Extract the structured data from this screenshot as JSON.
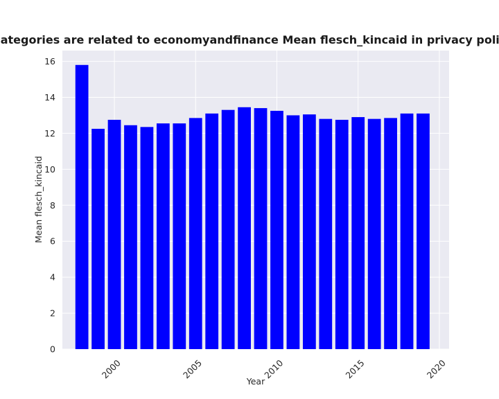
{
  "chart_data": {
    "type": "bar",
    "title": "when categories are related to economyandfinance Mean flesch_kincaid in privacy policies by Y",
    "xlabel": "Year",
    "ylabel": "Mean flesch_kincaid",
    "x": [
      1998,
      1999,
      2000,
      2001,
      2002,
      2003,
      2004,
      2005,
      2006,
      2007,
      2008,
      2009,
      2010,
      2011,
      2012,
      2013,
      2014,
      2015,
      2016,
      2017,
      2018,
      2019
    ],
    "values": [
      15.8,
      12.25,
      12.75,
      12.45,
      12.35,
      12.55,
      12.55,
      12.85,
      13.1,
      13.3,
      13.45,
      13.4,
      13.25,
      13.0,
      13.05,
      12.8,
      12.75,
      12.9,
      12.8,
      12.85,
      13.1,
      13.1
    ],
    "xlim": [
      1996.8,
      2020.6
    ],
    "ylim": [
      0,
      16.6
    ],
    "x_ticks": [
      2000,
      2005,
      2010,
      2015,
      2020
    ],
    "y_ticks": [
      0,
      2,
      4,
      6,
      8,
      10,
      12,
      14,
      16
    ],
    "bar_color": "#0000ff",
    "grid": true,
    "background": "#eaeaf2",
    "grid_color": "#ffffff"
  }
}
